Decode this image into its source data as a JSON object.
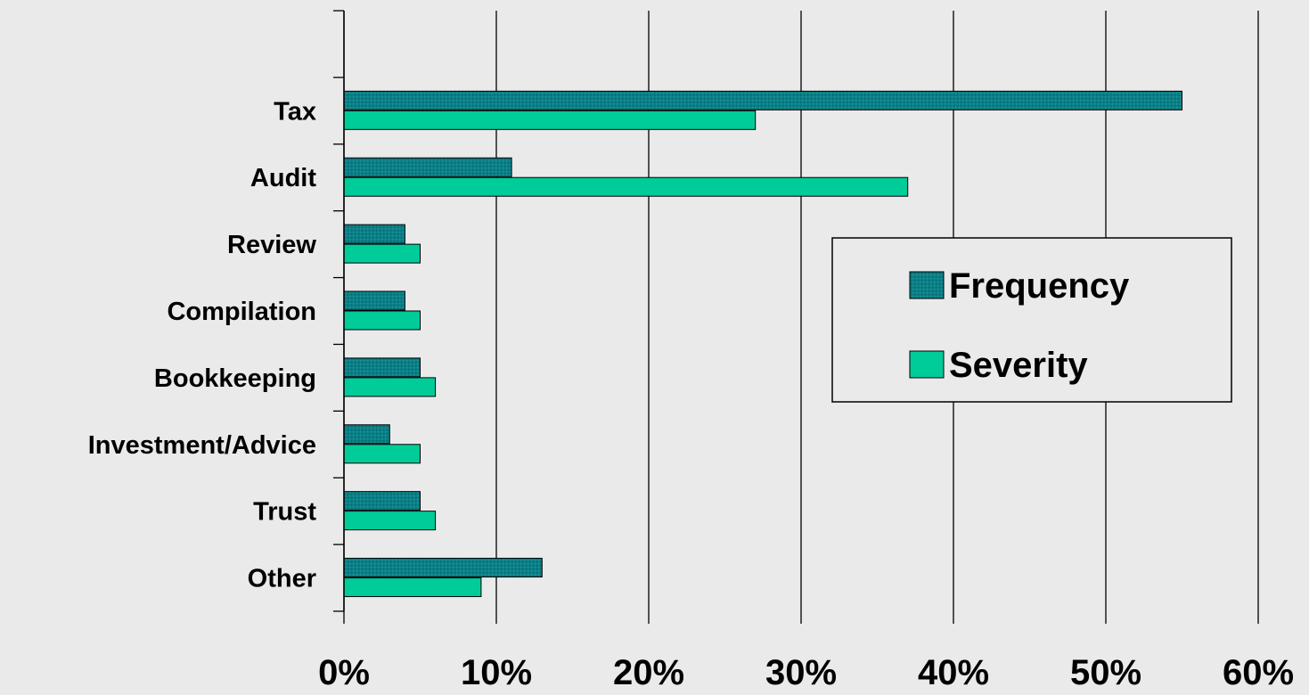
{
  "chart_data": {
    "type": "bar",
    "orientation": "horizontal",
    "categories": [
      "",
      "Tax",
      "Audit",
      "Review",
      "Compilation",
      "Bookkeeping",
      "Investment/Advice",
      "Trust",
      "Other"
    ],
    "series": [
      {
        "name": "Frequency",
        "values": [
          null,
          55,
          11,
          4,
          4,
          5,
          3,
          5,
          13
        ],
        "color": "#0b7f86",
        "pattern": "dotted"
      },
      {
        "name": "Severity",
        "values": [
          null,
          27,
          37,
          5,
          5,
          6,
          5,
          6,
          9
        ],
        "color": "#00cc99"
      }
    ],
    "xlim": [
      0,
      60
    ],
    "x_ticks": [
      "0%",
      "10%",
      "20%",
      "30%",
      "40%",
      "50%",
      "60%"
    ],
    "grid": "vertical",
    "legend": {
      "position": "right",
      "entries": [
        "Frequency",
        "Severity"
      ]
    }
  }
}
